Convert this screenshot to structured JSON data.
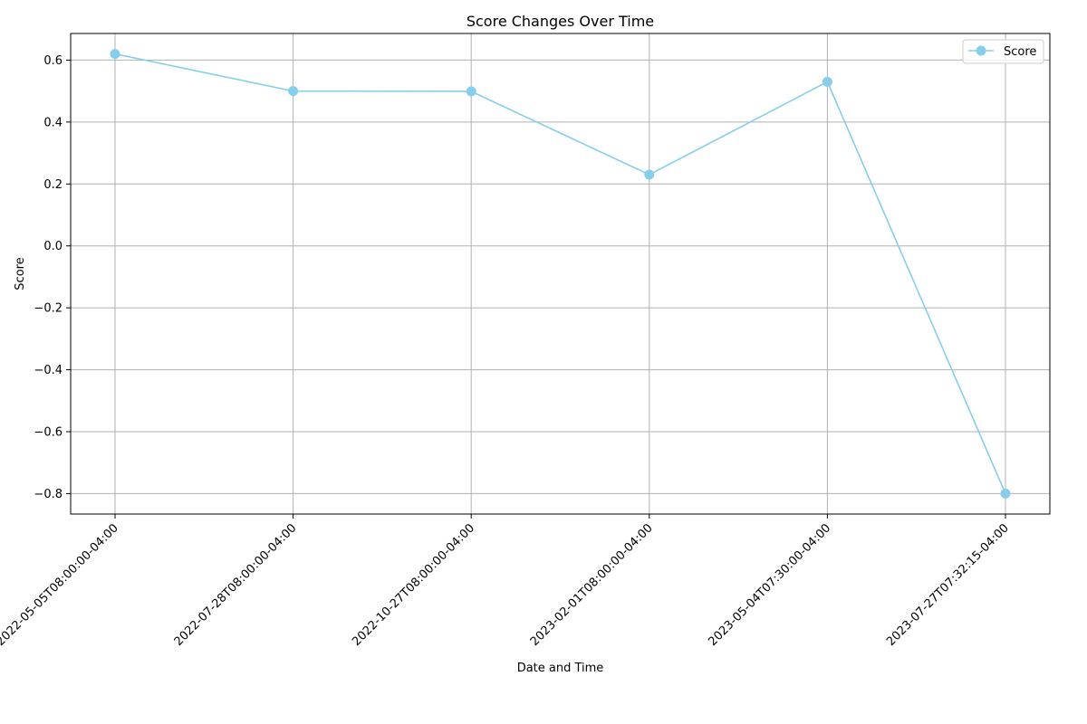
{
  "chart_data": {
    "type": "line",
    "title": "Score Changes Over Time",
    "xlabel": "Date and Time",
    "ylabel": "Score",
    "x": [
      "2022-05-05T08:00:00-04:00",
      "2022-07-28T08:00:00-04:00",
      "2022-10-27T08:00:00-04:00",
      "2023-02-01T08:00:00-04:00",
      "2023-05-04T07:30:00-04:00",
      "2023-07-27T07:32:15-04:00"
    ],
    "series": [
      {
        "name": "Score",
        "values": [
          0.62,
          0.5,
          0.499,
          0.23,
          0.53,
          -0.8
        ],
        "color": "#87CEEB"
      }
    ],
    "yticks": [
      "0.6",
      "0.4",
      "0.2",
      "0.0",
      "−0.2",
      "−0.4",
      "−0.6",
      "−0.8"
    ],
    "ytick_values": [
      0.6,
      0.4,
      0.2,
      0.0,
      -0.2,
      -0.4,
      -0.6,
      -0.8
    ],
    "ylim": [
      -0.866,
      0.686
    ],
    "grid": true,
    "legend_position": "top-right",
    "marker": "circle"
  }
}
